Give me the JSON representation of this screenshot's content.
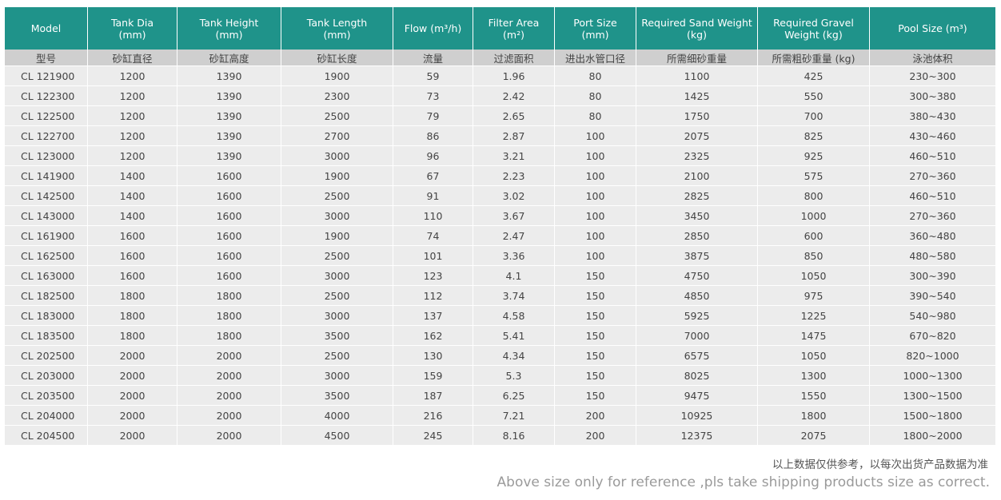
{
  "table": {
    "headers_en": [
      "Model",
      "Tank Dia\n(mm)",
      "Tank Height\n(mm)",
      "Tank Length\n(mm)",
      "Flow (m³/h)",
      "Filter Area\n(m²)",
      "Port Size\n(mm)",
      "Required Sand Weight\n(kg)",
      "Required Gravel\nWeight (kg)",
      "Pool Size (m³)"
    ],
    "headers_zh": [
      "型号",
      "砂缸直径",
      "砂缸高度",
      "砂缸长度",
      "流量",
      "过滤面积",
      "进出水管口径",
      "所需细砂重量",
      "所需粗砂重量 (kg)",
      "泳池体积"
    ],
    "rows": [
      [
        "CL 121900",
        "1200",
        "1390",
        "1900",
        "59",
        "1.96",
        "80",
        "1100",
        "425",
        "230~300"
      ],
      [
        "CL 122300",
        "1200",
        "1390",
        "2300",
        "73",
        "2.42",
        "80",
        "1425",
        "550",
        "300~380"
      ],
      [
        "CL 122500",
        "1200",
        "1390",
        "2500",
        "79",
        "2.65",
        "80",
        "1750",
        "700",
        "380~430"
      ],
      [
        "CL 122700",
        "1200",
        "1390",
        "2700",
        "86",
        "2.87",
        "100",
        "2075",
        "825",
        "430~460"
      ],
      [
        "CL 123000",
        "1200",
        "1390",
        "3000",
        "96",
        "3.21",
        "100",
        "2325",
        "925",
        "460~510"
      ],
      [
        "CL 141900",
        "1400",
        "1600",
        "1900",
        "67",
        "2.23",
        "100",
        "2100",
        "575",
        "270~360"
      ],
      [
        "CL 142500",
        "1400",
        "1600",
        "2500",
        "91",
        "3.02",
        "100",
        "2825",
        "800",
        "460~510"
      ],
      [
        "CL 143000",
        "1400",
        "1600",
        "3000",
        "110",
        "3.67",
        "100",
        "3450",
        "1000",
        "270~360"
      ],
      [
        "CL 161900",
        "1600",
        "1600",
        "1900",
        "74",
        "2.47",
        "100",
        "2850",
        "600",
        "360~480"
      ],
      [
        "CL 162500",
        "1600",
        "1600",
        "2500",
        "101",
        "3.36",
        "100",
        "3875",
        "850",
        "480~580"
      ],
      [
        "CL 163000",
        "1600",
        "1600",
        "3000",
        "123",
        "4.1",
        "150",
        "4750",
        "1050",
        "300~390"
      ],
      [
        "CL 182500",
        "1800",
        "1800",
        "2500",
        "112",
        "3.74",
        "150",
        "4850",
        "975",
        "390~540"
      ],
      [
        "CL 183000",
        "1800",
        "1800",
        "3000",
        "137",
        "4.58",
        "150",
        "5925",
        "1225",
        "540~980"
      ],
      [
        "CL 183500",
        "1800",
        "1800",
        "3500",
        "162",
        "5.41",
        "150",
        "7000",
        "1475",
        "670~820"
      ],
      [
        "CL 202500",
        "2000",
        "2000",
        "2500",
        "130",
        "4.34",
        "150",
        "6575",
        "1050",
        "820~1000"
      ],
      [
        "CL 203000",
        "2000",
        "2000",
        "3000",
        "159",
        "5.3",
        "150",
        "8025",
        "1300",
        "1000~1300"
      ],
      [
        "CL 203500",
        "2000",
        "2000",
        "3500",
        "187",
        "6.25",
        "150",
        "9475",
        "1550",
        "1300~1500"
      ],
      [
        "CL 204000",
        "2000",
        "2000",
        "4000",
        "216",
        "7.21",
        "200",
        "10925",
        "1800",
        "1500~1800"
      ],
      [
        "CL 204500",
        "2000",
        "2000",
        "4500",
        "245",
        "8.16",
        "200",
        "12375",
        "2075",
        "1800~2000"
      ]
    ]
  },
  "footnote": {
    "zh": "以上数据仅供参考，以每次出货产品数据为准",
    "en": "Above size only for reference ,pls take shipping products size as correct."
  },
  "colors": {
    "header_teal": "#1f938a",
    "subheader_gray": "#cfcfcf",
    "row_gray": "#ececec"
  }
}
